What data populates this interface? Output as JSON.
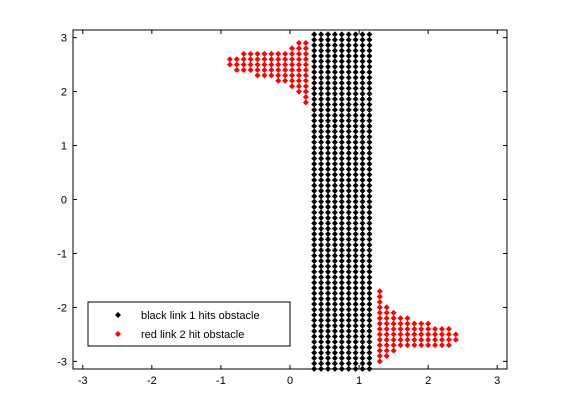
{
  "chart_data": {
    "type": "scatter",
    "title": "",
    "xlabel": "",
    "ylabel": "",
    "xlim": [
      -3.14159,
      3.14159
    ],
    "ylim": [
      -3.14159,
      3.14159
    ],
    "xticks": [
      -3,
      -2,
      -1,
      0,
      1,
      2,
      3
    ],
    "yticks": [
      3,
      2,
      1,
      0,
      -1,
      -2,
      -3
    ],
    "xtick_labels": [
      "-3",
      "-2",
      "-1",
      "0",
      "1",
      "2",
      "3"
    ],
    "ytick_labels": [
      "3",
      "2",
      "1",
      "0",
      "-1",
      "-2",
      "-3"
    ],
    "grid": false,
    "box": true,
    "legend_position": "bottom-left",
    "series": [
      {
        "name": "black link 1 hits obstacle",
        "color": "#000000",
        "marker": "diamond",
        "x_range": [
          0.35,
          1.2
        ],
        "y_range": [
          -3.14,
          3.14
        ],
        "fill": "rectangle"
      },
      {
        "name": "red link 2 hit obstacle",
        "color": "#ff0000",
        "marker": "diamond",
        "regions": [
          {
            "anchor_x": 0.33,
            "y_center": 2.55,
            "direction": "left",
            "profile_y": [
              1.45,
              2.05,
              2.2,
              2.3,
              2.4,
              2.5,
              2.6,
              2.7,
              2.75,
              3.05
            ],
            "profile_x": [
              0.33,
              0.1,
              -0.2,
              -0.5,
              -0.8,
              -0.9,
              -0.9,
              -0.75,
              -0.1,
              0.3
            ]
          },
          {
            "anchor_x": 1.2,
            "y_center": -2.55,
            "direction": "right",
            "profile_y": [
              -3.05,
              -2.75,
              -2.7,
              -2.6,
              -2.5,
              -2.4,
              -2.3,
              -2.2,
              -2.05,
              -1.45
            ],
            "profile_x": [
              1.25,
              1.6,
              2.35,
              2.45,
              2.45,
              2.3,
              2.0,
              1.7,
              1.45,
              1.22
            ]
          }
        ]
      }
    ]
  }
}
